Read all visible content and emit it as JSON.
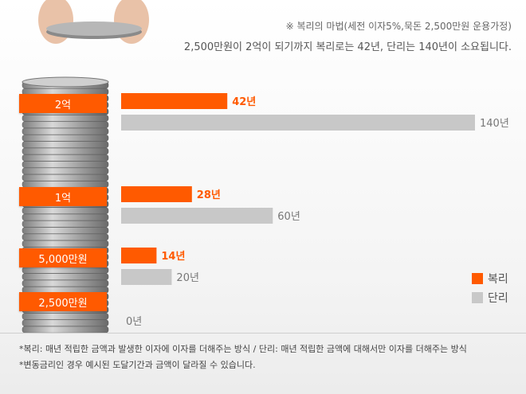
{
  "header": {
    "note": "※ 복리의 마법(세전 이자5%,묵돈 2,500만원 운용가정)",
    "summary": "2,500만원이 2억이 되기까지 복리로는 42년, 단리는 140년이 소요됩니다."
  },
  "footnotes": [
    "*복리: 매년 적립한 금액과 발생한 이자에 이자를 더해주는 방식 / 단리: 매년 적립한 금액에 대해서만 이자를 더해주는 방식",
    "*변동금리인 경우 예시된 도달기간과 금액이 달라질 수 있습니다."
  ],
  "colors": {
    "compound": "#ff5a00",
    "simple": "#c8c8c8",
    "compound_text": "#ff5a00",
    "simple_text": "#777777"
  },
  "chart_data": {
    "type": "bar",
    "orientation": "horizontal",
    "categories": [
      "2억",
      "1억",
      "5,000만원",
      "2,500만원"
    ],
    "unit": "년",
    "series": [
      {
        "name": "복리",
        "values": [
          42,
          28,
          14,
          null
        ]
      },
      {
        "name": "단리",
        "values": [
          140,
          60,
          20,
          0
        ]
      }
    ],
    "value_labels": {
      "복리": [
        "42년",
        "28년",
        "14년",
        ""
      ],
      "단리": [
        "140년",
        "60년",
        "20년",
        "0년"
      ]
    },
    "xlim": [
      0,
      140
    ],
    "legend_position": "bottom-right",
    "grid": false
  }
}
